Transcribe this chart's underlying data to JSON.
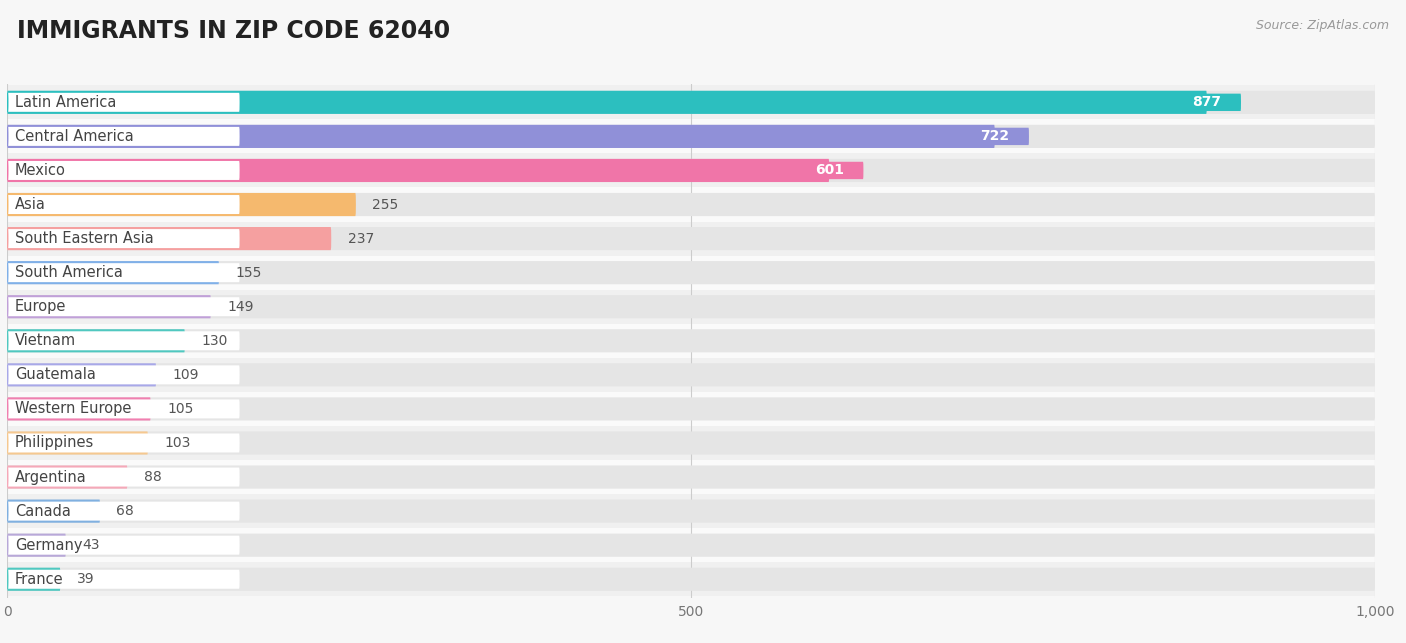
{
  "title": "IMMIGRANTS IN ZIP CODE 62040",
  "source": "Source: ZipAtlas.com",
  "categories": [
    "Latin America",
    "Central America",
    "Mexico",
    "Asia",
    "South Eastern Asia",
    "South America",
    "Europe",
    "Vietnam",
    "Guatemala",
    "Western Europe",
    "Philippines",
    "Argentina",
    "Canada",
    "Germany",
    "France"
  ],
  "values": [
    877,
    722,
    601,
    255,
    237,
    155,
    149,
    130,
    109,
    105,
    103,
    88,
    68,
    43,
    39
  ],
  "bar_colors": [
    "#2cbfbf",
    "#9090d8",
    "#f075a8",
    "#f5b96e",
    "#f5a0a0",
    "#80b0e8",
    "#c0a0d8",
    "#50c8c0",
    "#a8a8e8",
    "#f080b0",
    "#f5c890",
    "#f5a8b8",
    "#80b0e0",
    "#b8a8d8",
    "#50c8c0"
  ],
  "bg_color": "#f7f7f7",
  "bar_bg_color": "#e5e5e5",
  "row_bg_even": "#f0f0f0",
  "row_bg_odd": "#fafafa",
  "xlim": [
    0,
    1000
  ],
  "xticks": [
    0,
    500,
    1000
  ],
  "title_fontsize": 17,
  "label_fontsize": 10.5,
  "value_fontsize": 10
}
